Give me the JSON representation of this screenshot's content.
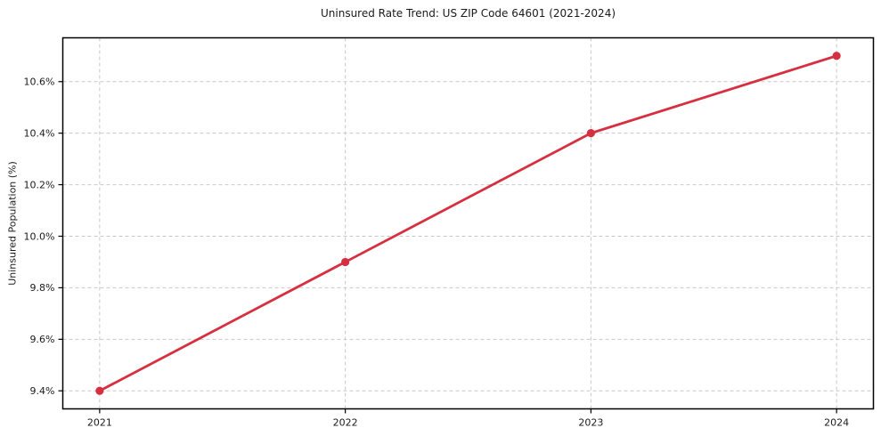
{
  "chart_data": {
    "type": "line",
    "title": "Uninsured Rate Trend: US ZIP Code 64601 (2021-2024)",
    "xlabel": "",
    "ylabel": "Uninsured Population (%)",
    "series_name": "Uninsured rate",
    "x": [
      2021,
      2022,
      2023,
      2024
    ],
    "values": [
      9.4,
      9.9,
      10.4,
      10.7
    ],
    "x_tick_labels": [
      "2021",
      "2022",
      "2023",
      "2024"
    ],
    "y_ticks": [
      9.4,
      9.6,
      9.8,
      10.0,
      10.2,
      10.4,
      10.6
    ],
    "y_tick_labels": [
      "9.4%",
      "9.6%",
      "9.8%",
      "10.0%",
      "10.2%",
      "10.4%",
      "10.6%"
    ],
    "xlim": [
      2020.85,
      2024.15
    ],
    "ylim": [
      9.33,
      10.77
    ],
    "grid": true,
    "grid_style": "dashed",
    "legend": "none",
    "line_color": "#d63040",
    "grid_color": "#c9c9c9",
    "axis_color": "#000000",
    "text_color": "#1a1a1a",
    "background_color": "#ffffff"
  }
}
